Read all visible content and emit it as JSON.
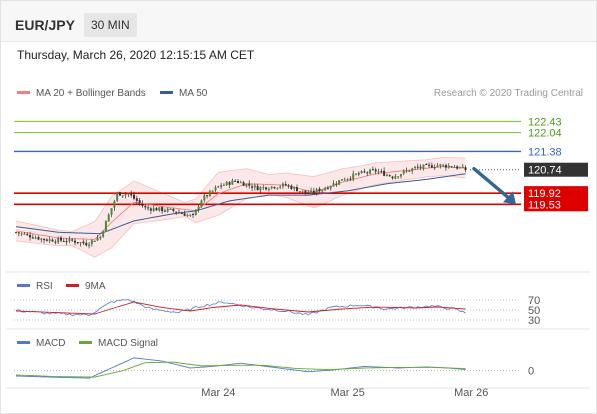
{
  "header": {
    "symbol": "EUR/JPY",
    "timeframe": "30 MIN"
  },
  "datetime": "Thursday, March 26, 2020 12:15:15 AM CET",
  "credit": "Research © 2020 Trading Central",
  "colors": {
    "bb": "#f08080",
    "ma50": "#3b5b9a",
    "res_green": "#77bb33",
    "blue_level": "#3366cc",
    "support_red": "#dd0000",
    "last_price": "#333333",
    "arrow": "#336699",
    "bull": "#4a8a3a",
    "bear": "#333333",
    "rsi": "#5577cc",
    "rsi_ma": "#cc2222",
    "macd": "#5577cc",
    "signal": "#66aa33"
  },
  "chart_data": [
    {
      "type": "candlestick",
      "legend": [
        {
          "name": "MA 20 + Bollinger Bands",
          "color": "#f08080",
          "icon": "line-icon"
        },
        {
          "name": "MA 50",
          "color": "#3b5b9a",
          "icon": "line-icon"
        }
      ],
      "x_labels": [
        {
          "label": "Mar 24",
          "index": 72
        },
        {
          "label": "Mar 25",
          "index": 118
        },
        {
          "label": "Mar 26",
          "index": 162
        }
      ],
      "ylim": [
        117.3,
        122.9
      ],
      "levels": [
        {
          "value": 122.43,
          "label": "122.43",
          "kind": "resistance",
          "color": "#77bb33"
        },
        {
          "value": 122.04,
          "label": "122.04",
          "kind": "resistance",
          "color": "#77bb33"
        },
        {
          "value": 121.38,
          "label": "121.38",
          "kind": "pivot",
          "color": "#3366cc"
        },
        {
          "value": 120.74,
          "label": "120.74",
          "kind": "last",
          "color": "#333333"
        },
        {
          "value": 119.92,
          "label": "119.92",
          "kind": "support",
          "color": "#dd0000"
        },
        {
          "value": 119.53,
          "label": "119.53",
          "kind": "support",
          "color": "#dd0000"
        }
      ],
      "close_anchors": [
        [
          0,
          118.55
        ],
        [
          10,
          118.3
        ],
        [
          20,
          118.25
        ],
        [
          25,
          118.15
        ],
        [
          30,
          118.4
        ],
        [
          36,
          119.9
        ],
        [
          40,
          119.9
        ],
        [
          46,
          119.4
        ],
        [
          56,
          119.3
        ],
        [
          63,
          119.1
        ],
        [
          66,
          119.7
        ],
        [
          72,
          120.15
        ],
        [
          78,
          120.35
        ],
        [
          86,
          120.1
        ],
        [
          96,
          120.2
        ],
        [
          104,
          119.9
        ],
        [
          110,
          120.1
        ],
        [
          116,
          120.4
        ],
        [
          122,
          120.6
        ],
        [
          128,
          120.7
        ],
        [
          134,
          120.5
        ],
        [
          142,
          120.8
        ],
        [
          150,
          120.9
        ],
        [
          156,
          120.85
        ],
        [
          160,
          120.74
        ]
      ],
      "ma20_anchors": [
        [
          0,
          118.6
        ],
        [
          15,
          118.35
        ],
        [
          28,
          118.3
        ],
        [
          34,
          118.9
        ],
        [
          42,
          119.6
        ],
        [
          52,
          119.45
        ],
        [
          64,
          119.3
        ],
        [
          72,
          119.9
        ],
        [
          82,
          120.25
        ],
        [
          96,
          120.2
        ],
        [
          106,
          119.95
        ],
        [
          116,
          120.3
        ],
        [
          128,
          120.6
        ],
        [
          142,
          120.75
        ],
        [
          152,
          120.85
        ],
        [
          160,
          120.8
        ]
      ],
      "ma50_anchors": [
        [
          0,
          118.75
        ],
        [
          15,
          118.55
        ],
        [
          30,
          118.5
        ],
        [
          42,
          118.95
        ],
        [
          56,
          119.2
        ],
        [
          64,
          119.3
        ],
        [
          76,
          119.65
        ],
        [
          90,
          119.85
        ],
        [
          104,
          119.85
        ],
        [
          118,
          120.0
        ],
        [
          132,
          120.25
        ],
        [
          146,
          120.4
        ],
        [
          160,
          120.6
        ]
      ],
      "bb_width_anchors": [
        [
          0,
          0.35
        ],
        [
          20,
          0.25
        ],
        [
          34,
          0.9
        ],
        [
          44,
          0.7
        ],
        [
          60,
          0.25
        ],
        [
          72,
          0.75
        ],
        [
          90,
          0.35
        ],
        [
          106,
          0.55
        ],
        [
          124,
          0.4
        ],
        [
          146,
          0.3
        ],
        [
          160,
          0.35
        ]
      ],
      "forecast_arrow": {
        "from_value": 120.74,
        "to_value": 119.53
      }
    },
    {
      "type": "line",
      "title": "RSI",
      "series": [
        {
          "name": "RSI",
          "color": "#5577cc"
        },
        {
          "name": "9MA",
          "color": "#cc2222"
        }
      ],
      "levels": [
        {
          "value": 70,
          "label": "70"
        },
        {
          "value": 50,
          "label": "50"
        },
        {
          "value": 30,
          "label": "30"
        }
      ],
      "ylim": [
        20,
        80
      ],
      "rsi_anchors": [
        [
          0,
          49
        ],
        [
          12,
          43
        ],
        [
          26,
          40
        ],
        [
          34,
          66
        ],
        [
          40,
          71
        ],
        [
          48,
          52
        ],
        [
          58,
          45
        ],
        [
          66,
          58
        ],
        [
          74,
          66
        ],
        [
          84,
          55
        ],
        [
          96,
          48
        ],
        [
          104,
          40
        ],
        [
          112,
          55
        ],
        [
          122,
          60
        ],
        [
          132,
          52
        ],
        [
          140,
          55
        ],
        [
          148,
          58
        ],
        [
          156,
          52
        ],
        [
          160,
          44
        ]
      ],
      "ma_anchors": [
        [
          0,
          48
        ],
        [
          14,
          45
        ],
        [
          28,
          42
        ],
        [
          36,
          56
        ],
        [
          42,
          66
        ],
        [
          52,
          55
        ],
        [
          62,
          48
        ],
        [
          70,
          55
        ],
        [
          80,
          60
        ],
        [
          92,
          52
        ],
        [
          104,
          46
        ],
        [
          116,
          52
        ],
        [
          128,
          56
        ],
        [
          142,
          54
        ],
        [
          150,
          56
        ],
        [
          160,
          52
        ]
      ]
    },
    {
      "type": "line",
      "title": "MACD",
      "series": [
        {
          "name": "MACD",
          "color": "#5577cc"
        },
        {
          "name": "MACD Signal",
          "color": "#66aa33"
        }
      ],
      "levels": [
        {
          "value": 0,
          "label": "0"
        }
      ],
      "ylim": [
        -0.25,
        0.35
      ],
      "macd_anchors": [
        [
          0,
          -0.1
        ],
        [
          12,
          -0.12
        ],
        [
          26,
          -0.14
        ],
        [
          34,
          0.05
        ],
        [
          42,
          0.24
        ],
        [
          52,
          0.18
        ],
        [
          62,
          0.05
        ],
        [
          70,
          0.08
        ],
        [
          80,
          0.14
        ],
        [
          92,
          0.06
        ],
        [
          104,
          -0.02
        ],
        [
          114,
          0.02
        ],
        [
          124,
          0.08
        ],
        [
          136,
          0.05
        ],
        [
          146,
          0.07
        ],
        [
          154,
          0.05
        ],
        [
          160,
          0.02
        ]
      ],
      "signal_anchors": [
        [
          0,
          -0.08
        ],
        [
          14,
          -0.11
        ],
        [
          28,
          -0.12
        ],
        [
          38,
          0.0
        ],
        [
          46,
          0.15
        ],
        [
          56,
          0.16
        ],
        [
          66,
          0.09
        ],
        [
          76,
          0.1
        ],
        [
          88,
          0.1
        ],
        [
          100,
          0.04
        ],
        [
          112,
          0.02
        ],
        [
          124,
          0.05
        ],
        [
          136,
          0.06
        ],
        [
          148,
          0.06
        ],
        [
          160,
          0.04
        ]
      ]
    }
  ],
  "indicators": {
    "rsi_legend": [
      "RSI",
      "9MA"
    ],
    "macd_legend": [
      "MACD",
      "MACD Signal"
    ]
  }
}
